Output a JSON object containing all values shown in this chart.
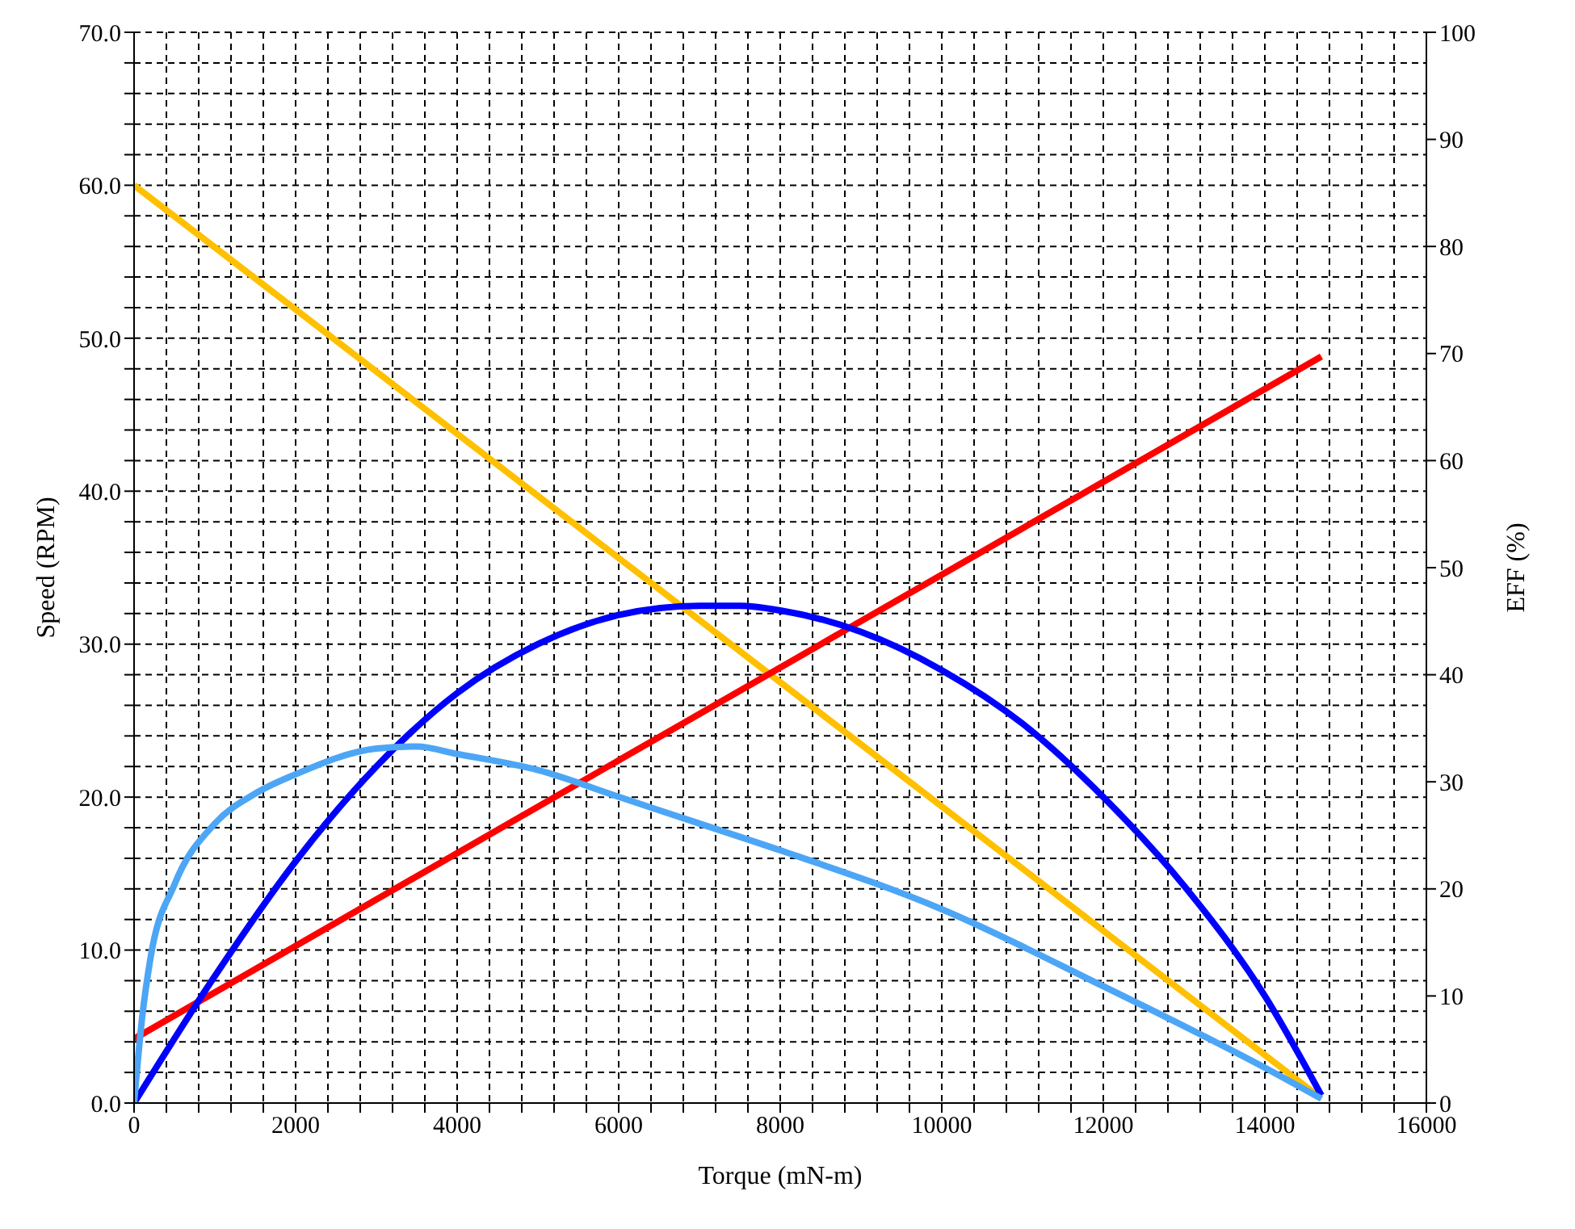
{
  "chart_data": {
    "type": "line",
    "xlabel": "Torque (mN-m)",
    "ylabel": "Speed (RPM)",
    "y2label": "EFF (%)",
    "xlim": [
      0,
      16000
    ],
    "xticks": [
      0,
      {
        "value": 400,
        "label": null
      },
      {
        "value": 800,
        "label": null
      },
      {
        "value": 1200,
        "label": null
      },
      {
        "value": 1600,
        "label": null
      },
      2000,
      {
        "value": 2400,
        "label": null
      },
      {
        "value": 2800,
        "label": null
      },
      {
        "value": 3200,
        "label": null
      },
      {
        "value": 3600,
        "label": null
      },
      4000,
      {
        "value": 4400,
        "label": null
      },
      {
        "value": 4800,
        "label": null
      },
      {
        "value": 5200,
        "label": null
      },
      {
        "value": 5600,
        "label": null
      },
      6000,
      {
        "value": 6400,
        "label": null
      },
      {
        "value": 6800,
        "label": null
      },
      {
        "value": 7200,
        "label": null
      },
      {
        "value": 7600,
        "label": null
      },
      8000,
      {
        "value": 8400,
        "label": null
      },
      {
        "value": 8800,
        "label": null
      },
      {
        "value": 9200,
        "label": null
      },
      {
        "value": 9600,
        "label": null
      },
      10000,
      {
        "value": 10400,
        "label": null
      },
      {
        "value": 10800,
        "label": null
      },
      {
        "value": 11200,
        "label": null
      },
      {
        "value": 11600,
        "label": null
      },
      12000,
      {
        "value": 12400,
        "label": null
      },
      {
        "value": 12800,
        "label": null
      },
      {
        "value": 13200,
        "label": null
      },
      {
        "value": 13600,
        "label": null
      },
      14000,
      {
        "value": 14400,
        "label": null
      },
      {
        "value": 14800,
        "label": null
      },
      {
        "value": 15200,
        "label": null
      },
      {
        "value": 15600,
        "label": null
      },
      16000
    ],
    "ylim": [
      0,
      70
    ],
    "yticks": [
      {
        "value": 0,
        "label": "0.0"
      },
      {
        "value": 2,
        "label": null
      },
      {
        "value": 4,
        "label": null
      },
      {
        "value": 6,
        "label": null
      },
      {
        "value": 8,
        "label": null
      },
      {
        "value": 10,
        "label": "10.0"
      },
      {
        "value": 12,
        "label": null
      },
      {
        "value": 14,
        "label": null
      },
      {
        "value": 16,
        "label": null
      },
      {
        "value": 18,
        "label": null
      },
      {
        "value": 20,
        "label": "20.0"
      },
      {
        "value": 22,
        "label": null
      },
      {
        "value": 24,
        "label": null
      },
      {
        "value": 26,
        "label": null
      },
      {
        "value": 28,
        "label": null
      },
      {
        "value": 30,
        "label": "30.0"
      },
      {
        "value": 32,
        "label": null
      },
      {
        "value": 34,
        "label": null
      },
      {
        "value": 36,
        "label": null
      },
      {
        "value": 38,
        "label": null
      },
      {
        "value": 40,
        "label": "40.0"
      },
      {
        "value": 42,
        "label": null
      },
      {
        "value": 44,
        "label": null
      },
      {
        "value": 46,
        "label": null
      },
      {
        "value": 48,
        "label": null
      },
      {
        "value": 50,
        "label": "50.0"
      },
      {
        "value": 52,
        "label": null
      },
      {
        "value": 54,
        "label": null
      },
      {
        "value": 56,
        "label": null
      },
      {
        "value": 58,
        "label": null
      },
      {
        "value": 60,
        "label": "60.0"
      },
      {
        "value": 62,
        "label": null
      },
      {
        "value": 64,
        "label": null
      },
      {
        "value": 66,
        "label": null
      },
      {
        "value": 68,
        "label": null
      },
      {
        "value": 70,
        "label": "70.0"
      }
    ],
    "y2lim": [
      0,
      100
    ],
    "y2ticks": [
      0,
      10,
      20,
      30,
      40,
      50,
      60,
      70,
      80,
      90,
      100
    ],
    "grid": true,
    "marker": "none",
    "line_style": "solid",
    "series": [
      {
        "color": "#ffc000",
        "x": [
          0,
          14700
        ],
        "values": [
          60,
          0.3
        ]
      },
      {
        "color": "#ff0000",
        "x": [
          0,
          14700
        ],
        "values": [
          4.2,
          48.8
        ]
      },
      {
        "color": "#0000ff",
        "x": [
          0,
          1000,
          2000,
          3000,
          4000,
          5000,
          6000,
          7000,
          7500,
          8000,
          9000,
          10000,
          11000,
          12000,
          13000,
          14000,
          14700
        ],
        "values": [
          0,
          8.3,
          15.8,
          22,
          26.8,
          30,
          31.9,
          32.5,
          32.5,
          32.2,
          30.8,
          28.3,
          24.8,
          20,
          14.2,
          7,
          0.5
        ]
      },
      {
        "color": "#4da6f5",
        "axis": "y2",
        "x": [
          0,
          100,
          200,
          500,
          1000,
          1500,
          2000,
          3000,
          3500,
          4000,
          5000,
          6000,
          7000,
          8000,
          10000,
          12000,
          14000,
          14700
        ],
        "values": [
          0,
          8,
          13.4,
          20.4,
          26.1,
          28.9,
          30.7,
          33.1,
          33.3,
          32.6,
          31.1,
          28.6,
          26.1,
          23.6,
          18.1,
          10.9,
          3.3,
          0.4
        ]
      }
    ]
  }
}
